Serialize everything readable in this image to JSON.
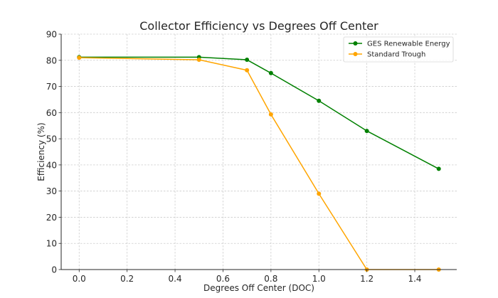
{
  "chart_data": {
    "type": "line",
    "title": "Collector Efficiency vs Degrees Off Center",
    "xlabel": "Degrees Off Center (DOC)",
    "ylabel": "Efficiency (%)",
    "xlim": [
      -0.075,
      1.575
    ],
    "ylim": [
      0,
      90
    ],
    "xticks": [
      0.0,
      0.2,
      0.4,
      0.6,
      0.8,
      1.0,
      1.2,
      1.4
    ],
    "xtick_labels": [
      "0.0",
      "0.2",
      "0.4",
      "0.6",
      "0.8",
      "1.0",
      "1.2",
      "1.4"
    ],
    "yticks": [
      0,
      10,
      20,
      30,
      40,
      50,
      60,
      70,
      80,
      90
    ],
    "ytick_labels": [
      "0",
      "10",
      "20",
      "30",
      "40",
      "50",
      "60",
      "70",
      "80",
      "90"
    ],
    "grid": true,
    "legend_position": "top-right",
    "x": [
      0.0,
      0.5,
      0.7,
      0.8,
      1.0,
      1.2,
      1.5
    ],
    "series": [
      {
        "name": "GES Renewable Energy",
        "color": "#008000",
        "values": [
          81.2,
          81.2,
          80.2,
          75.1,
          64.5,
          53.0,
          38.5
        ]
      },
      {
        "name": "Standard Trough",
        "color": "#FFA500",
        "values": [
          81.0,
          80.2,
          76.2,
          59.3,
          29.0,
          0.0,
          0.0
        ]
      }
    ]
  }
}
